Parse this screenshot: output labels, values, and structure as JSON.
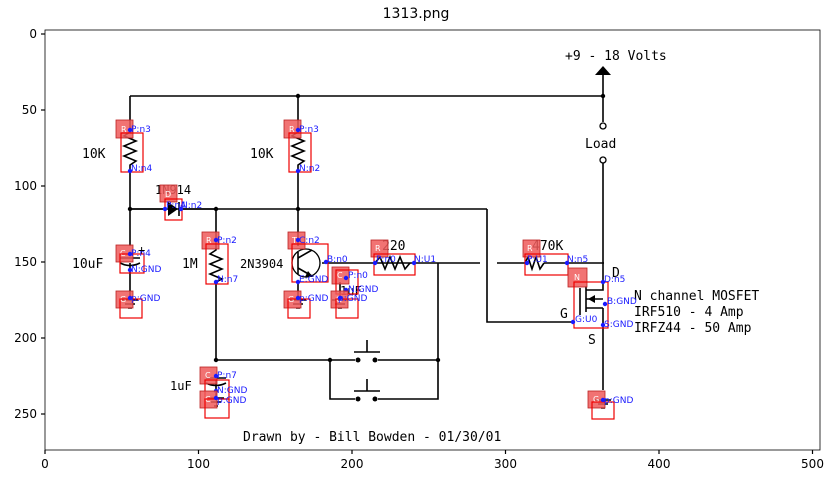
{
  "title": "1313.png",
  "axes": {
    "x_ticks": [
      "0",
      "100",
      "200",
      "300",
      "400",
      "500"
    ],
    "y_ticks": [
      "0",
      "50",
      "100",
      "150",
      "200",
      "250"
    ]
  },
  "labels": {
    "supply": "+9 - 18  Volts",
    "load": "Load",
    "r1_value": "10K",
    "r2_value": "10K",
    "diode_value": "1N914",
    "cap1_value": "10uF",
    "cap1_plus": "+",
    "r3_value": "1M",
    "transistor": "2N3904",
    "r4_value": "220",
    "r5_value": "470K",
    "cap2_value": "1uF",
    "cap3_value": "1uF",
    "mosfet_d": "D",
    "mosfet_g": "G",
    "mosfet_s": "S",
    "mosfet_desc1": "N channel MOSFET",
    "mosfet_desc2": "IRF510 - 4 Amp",
    "mosfet_desc3": "IRFZ44 - 50 Amp",
    "credit": "Drawn by - Bill Bowden - 01/30/01"
  },
  "badges": {
    "r1": "R",
    "r2": "R",
    "d": "D",
    "c1": "C",
    "g1": "G",
    "r3": "R",
    "t": "T",
    "g2": "G",
    "c2": "C",
    "g3": "G",
    "r4": "R",
    "r5": "R",
    "n": "N",
    "c3": "C",
    "c4": "C",
    "g4": "G"
  },
  "annotations": {
    "r1_p": "P:n3",
    "r1_n": "N:n4",
    "r2_p": "P:n3",
    "r2_n": "N:n2",
    "d_p": "P:n4",
    "d_n": "N:n2",
    "c1_p": "P:n4",
    "c1_n": "N:GND",
    "g1": "p:GND",
    "r3_p": "P:n2",
    "r3_n": "N:n7",
    "t_c": "C:n2",
    "t_b": "B:n0",
    "t_e": "E:GND",
    "g2": "p:GND",
    "c2_p": "P:n0",
    "c2_n": "N:GND",
    "g3": "p:GND",
    "r4_p": "P:n0",
    "r4_n": "N:U1",
    "r5_p": "P:U1",
    "r5_n": "N:n5",
    "n_d": "D:n5",
    "n_b": "B:GND",
    "n_g": "G:U0",
    "n_s": "S:GND",
    "c3_p": "P:n7",
    "c3_n": "N:GND",
    "c4": "p:GND",
    "g4": "p:GND"
  }
}
